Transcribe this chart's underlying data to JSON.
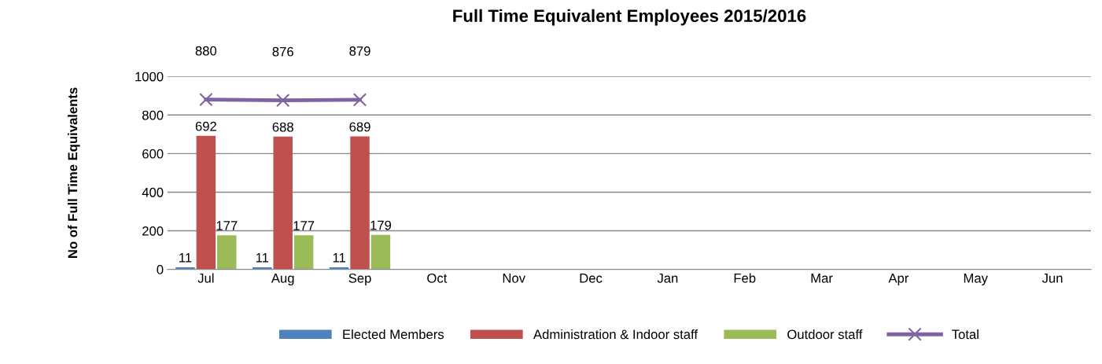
{
  "chart_data": {
    "type": "bar",
    "title": "Full Time Equivalent Employees 2015/2016",
    "ylabel": "No of Full Time Equivalents",
    "categories": [
      "Jul",
      "Aug",
      "Sep",
      "Oct",
      "Nov",
      "Dec",
      "Jan",
      "Feb",
      "Mar",
      "Apr",
      "May",
      "Jun"
    ],
    "series": [
      {
        "name": "Elected Members",
        "color": "#4f81bd",
        "values": [
          11,
          11,
          11,
          null,
          null,
          null,
          null,
          null,
          null,
          null,
          null,
          null
        ]
      },
      {
        "name": "Administration & Indoor staff",
        "color": "#c0504d",
        "values": [
          692,
          688,
          689,
          null,
          null,
          null,
          null,
          null,
          null,
          null,
          null,
          null
        ]
      },
      {
        "name": "Outdoor staff",
        "color": "#9bbb59",
        "values": [
          177,
          177,
          179,
          null,
          null,
          null,
          null,
          null,
          null,
          null,
          null,
          null
        ]
      },
      {
        "name": "Total",
        "type": "line",
        "color": "#8064a2",
        "marker": "cross",
        "values": [
          880,
          876,
          879,
          null,
          null,
          null,
          null,
          null,
          null,
          null,
          null,
          null
        ]
      }
    ],
    "ylim": [
      0,
      1000
    ],
    "yticks": [
      0,
      200,
      400,
      600,
      800,
      1000
    ],
    "grid": "y",
    "legend": "bottom",
    "data_labels": true
  }
}
